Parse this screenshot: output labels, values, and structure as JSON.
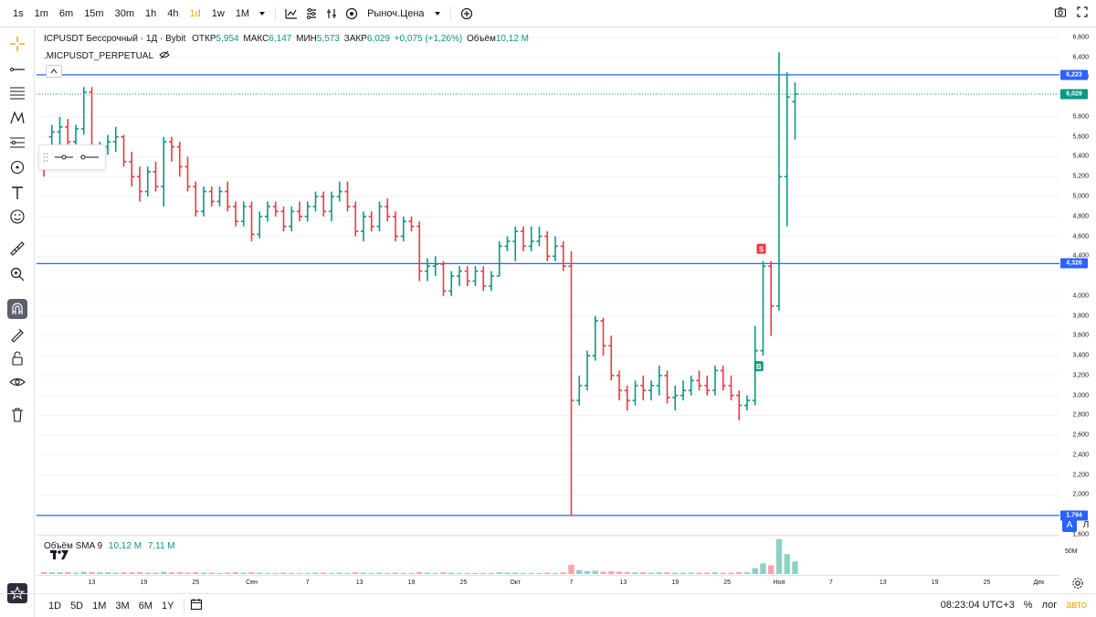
{
  "toolbar": {
    "timeframes": [
      "1s",
      "1m",
      "6m",
      "15m",
      "30m",
      "1h",
      "4h",
      "1d",
      "1w",
      "1M"
    ],
    "active_timeframe": "1d",
    "price_type": "Рыноч.Цена"
  },
  "legend": {
    "symbol": "ICPUSDT Бессрочный · 1Д · Bybit",
    "open_label": "ОТКР",
    "open": "5,954",
    "high_label": "МАКС",
    "high": "6,147",
    "low_label": "МИН",
    "low": "5,573",
    "close_label": "ЗАКР",
    "close": "6,029",
    "change": "+0,075 (+1,26%)",
    "volume_label": "Объём",
    "volume": "10,12 M",
    "subsymbol": ".MICPUSDT_PERPETUAL"
  },
  "volume_legend": {
    "label": "Объём SMA 9",
    "value1": "10,12 M",
    "value2": "7,11 M",
    "axis_label": "50M"
  },
  "price_axis": {
    "ticks": [
      "6,600",
      "6,400",
      "6,200",
      "5,800",
      "5,600",
      "5,400",
      "5,200",
      "5,000",
      "4,800",
      "4,600",
      "4,400",
      "4,000",
      "3,800",
      "3,600",
      "3,400",
      "3,200",
      "3,000",
      "2,800",
      "2,600",
      "2,400",
      "2,200",
      "2,000",
      "1,600"
    ],
    "badges": [
      {
        "text": "6,223",
        "color": "#2962ff"
      },
      {
        "text": "6,029",
        "color": "#089981"
      },
      {
        "text": "4,326",
        "color": "#2962ff"
      },
      {
        "text": "1,794",
        "color": "#2962ff"
      }
    ],
    "mode_auto": "A",
    "mode_log": "Л"
  },
  "time_axis": {
    "ticks": [
      "13",
      "19",
      "25",
      "Сен",
      "7",
      "13",
      "19",
      "25",
      "Окт",
      "7",
      "13",
      "19",
      "25",
      "Ноя",
      "7",
      "13",
      "19",
      "25",
      "Дек"
    ]
  },
  "bottombar": {
    "ranges": [
      "1D",
      "5D",
      "1M",
      "3M",
      "6M",
      "1Y"
    ],
    "clock": "08:23:04 UTC+3",
    "percent": "%",
    "log": "лог",
    "auto": "авто"
  },
  "markers": {
    "sell": "S",
    "buy": "B"
  },
  "chart_data": {
    "type": "ohlc",
    "title": "ICPUSDT Бессрочный · 1Д · Bybit",
    "xlabel": "",
    "ylabel": "",
    "ylim": [
      1600,
      6700
    ],
    "up_color": "#089981",
    "down_color": "#f23645",
    "horizontal_lines": [
      6223,
      4326,
      1794
    ],
    "bars": [
      [
        5.45,
        5.5,
        5.2,
        5.35
      ],
      [
        5.6,
        5.72,
        5.4,
        5.65
      ],
      [
        5.65,
        5.8,
        5.5,
        5.7
      ],
      [
        5.7,
        5.78,
        5.45,
        5.55
      ],
      [
        5.55,
        5.72,
        5.5,
        5.68
      ],
      [
        5.68,
        6.1,
        5.62,
        6.05
      ],
      [
        6.05,
        6.1,
        5.4,
        5.45
      ],
      [
        5.45,
        5.55,
        5.3,
        5.5
      ],
      [
        5.5,
        5.62,
        5.42,
        5.55
      ],
      [
        5.55,
        5.7,
        5.45,
        5.6
      ],
      [
        5.6,
        5.62,
        5.3,
        5.35
      ],
      [
        5.35,
        5.45,
        5.1,
        5.2
      ],
      [
        5.2,
        5.3,
        4.95,
        5.05
      ],
      [
        5.05,
        5.3,
        5.0,
        5.25
      ],
      [
        5.25,
        5.35,
        5.05,
        5.1
      ],
      [
        5.1,
        5.6,
        4.9,
        5.55
      ],
      [
        5.55,
        5.6,
        5.35,
        5.5
      ],
      [
        5.5,
        5.55,
        5.2,
        5.3
      ],
      [
        5.3,
        5.4,
        5.05,
        5.1
      ],
      [
        5.1,
        5.15,
        4.8,
        4.85
      ],
      [
        4.85,
        5.1,
        4.8,
        5.05
      ],
      [
        5.05,
        5.1,
        4.9,
        4.95
      ],
      [
        4.95,
        5.1,
        4.9,
        5.05
      ],
      [
        5.05,
        5.15,
        4.85,
        4.9
      ],
      [
        4.9,
        4.95,
        4.7,
        4.75
      ],
      [
        4.75,
        4.95,
        4.7,
        4.9
      ],
      [
        4.9,
        4.95,
        4.55,
        4.62
      ],
      [
        4.62,
        4.85,
        4.58,
        4.8
      ],
      [
        4.8,
        4.95,
        4.75,
        4.9
      ],
      [
        4.9,
        4.95,
        4.8,
        4.85
      ],
      [
        4.85,
        4.9,
        4.65,
        4.7
      ],
      [
        4.7,
        4.9,
        4.65,
        4.85
      ],
      [
        4.85,
        4.95,
        4.75,
        4.8
      ],
      [
        4.8,
        4.95,
        4.75,
        4.9
      ],
      [
        4.9,
        5.05,
        4.85,
        5.0
      ],
      [
        5.0,
        5.05,
        4.8,
        4.85
      ],
      [
        4.85,
        5.05,
        4.75,
        5.0
      ],
      [
        5.0,
        5.15,
        4.95,
        5.05
      ],
      [
        5.05,
        5.15,
        4.85,
        4.9
      ],
      [
        4.9,
        4.95,
        4.6,
        4.65
      ],
      [
        4.65,
        4.85,
        4.55,
        4.8
      ],
      [
        4.8,
        4.85,
        4.65,
        4.7
      ],
      [
        4.7,
        4.95,
        4.65,
        4.9
      ],
      [
        4.9,
        4.98,
        4.75,
        4.8
      ],
      [
        4.8,
        4.85,
        4.55,
        4.6
      ],
      [
        4.6,
        4.8,
        4.55,
        4.75
      ],
      [
        4.75,
        4.8,
        4.65,
        4.7
      ],
      [
        4.7,
        4.75,
        4.15,
        4.25
      ],
      [
        4.25,
        4.38,
        4.15,
        4.3
      ],
      [
        4.3,
        4.4,
        4.2,
        4.32
      ],
      [
        4.32,
        4.35,
        4.0,
        4.05
      ],
      [
        4.05,
        4.25,
        4.0,
        4.2
      ],
      [
        4.2,
        4.3,
        4.1,
        4.25
      ],
      [
        4.25,
        4.3,
        4.1,
        4.15
      ],
      [
        4.15,
        4.3,
        4.1,
        4.25
      ],
      [
        4.25,
        4.3,
        4.05,
        4.1
      ],
      [
        4.1,
        4.25,
        4.05,
        4.2
      ],
      [
        4.2,
        4.55,
        4.2,
        4.5
      ],
      [
        4.5,
        4.6,
        4.45,
        4.55
      ],
      [
        4.55,
        4.7,
        4.35,
        4.65
      ],
      [
        4.65,
        4.7,
        4.45,
        4.5
      ],
      [
        4.5,
        4.7,
        4.45,
        4.55
      ],
      [
        4.55,
        4.7,
        4.5,
        4.6
      ],
      [
        4.6,
        4.65,
        4.35,
        4.4
      ],
      [
        4.4,
        4.6,
        4.35,
        4.5
      ],
      [
        4.5,
        4.55,
        4.25,
        4.3
      ],
      [
        4.3,
        4.45,
        1.794,
        2.95
      ],
      [
        2.95,
        3.2,
        2.9,
        3.1
      ],
      [
        3.1,
        3.45,
        3.05,
        3.4
      ],
      [
        3.4,
        3.8,
        3.35,
        3.75
      ],
      [
        3.75,
        3.78,
        3.4,
        3.5
      ],
      [
        3.5,
        3.6,
        3.15,
        3.2
      ],
      [
        3.2,
        3.25,
        2.95,
        3.05
      ],
      [
        3.05,
        3.1,
        2.85,
        2.95
      ],
      [
        2.95,
        3.15,
        2.9,
        3.1
      ],
      [
        3.1,
        3.2,
        2.95,
        3.05
      ],
      [
        3.05,
        3.15,
        2.95,
        3.1
      ],
      [
        3.1,
        3.3,
        3.0,
        3.2
      ],
      [
        3.2,
        3.25,
        2.92,
        2.98
      ],
      [
        2.98,
        3.1,
        2.85,
        3.0
      ],
      [
        3.0,
        3.15,
        2.95,
        3.05
      ],
      [
        3.05,
        3.2,
        3.0,
        3.15
      ],
      [
        3.15,
        3.25,
        3.05,
        3.1
      ],
      [
        3.1,
        3.2,
        3.0,
        3.05
      ],
      [
        3.05,
        3.3,
        3.0,
        3.25
      ],
      [
        3.25,
        3.3,
        3.05,
        3.1
      ],
      [
        3.1,
        3.2,
        2.95,
        3.0
      ],
      [
        3.0,
        3.05,
        2.75,
        2.9
      ],
      [
        2.9,
        3.0,
        2.85,
        2.95
      ],
      [
        2.95,
        3.7,
        2.9,
        3.45
      ],
      [
        3.45,
        4.35,
        3.4,
        4.3
      ],
      [
        4.3,
        4.35,
        3.6,
        3.9
      ],
      [
        3.9,
        6.45,
        3.85,
        5.2
      ],
      [
        5.2,
        6.25,
        4.7,
        6.0
      ],
      [
        5.954,
        6.147,
        5.573,
        6.029
      ]
    ],
    "volume_series": {
      "name": "Объём SMA 9",
      "values": [
        0.6,
        0.5,
        0.5,
        0.6,
        0.4,
        0.7,
        0.6,
        0.5,
        0.5,
        0.4,
        0.5,
        0.5,
        0.6,
        0.4,
        0.4,
        0.7,
        0.5,
        0.5,
        0.4,
        0.5,
        0.4,
        0.4,
        0.3,
        0.4,
        0.5,
        0.4,
        0.5,
        0.4,
        0.3,
        0.3,
        0.4,
        0.3,
        0.3,
        0.3,
        0.4,
        0.4,
        0.3,
        0.4,
        0.3,
        0.5,
        0.4,
        0.3,
        0.4,
        0.3,
        0.4,
        0.3,
        0.3,
        0.6,
        0.4,
        0.3,
        0.5,
        0.4,
        0.3,
        0.3,
        0.3,
        0.3,
        0.3,
        0.5,
        0.4,
        0.4,
        0.3,
        0.3,
        0.3,
        0.4,
        0.3,
        0.5,
        2.8,
        1.2,
        0.9,
        1.0,
        0.7,
        0.8,
        0.7,
        0.6,
        0.5,
        0.5,
        0.4,
        0.5,
        0.5,
        0.4,
        0.4,
        0.4,
        0.4,
        0.4,
        0.5,
        0.4,
        0.4,
        0.6,
        0.5,
        1.8,
        3.2,
        2.6,
        10.5,
        6.0,
        3.8
      ]
    },
    "price_axis_ticks": [
      6600,
      6400,
      6200,
      5800,
      5600,
      5400,
      5200,
      5000,
      4800,
      4600,
      4400,
      4000,
      3800,
      3600,
      3400,
      3200,
      3000,
      2800,
      2600,
      2400,
      2200,
      2000,
      1600
    ],
    "time_axis_ticks": [
      "13",
      "19",
      "25",
      "Сен",
      "7",
      "13",
      "19",
      "25",
      "Окт",
      "7",
      "13",
      "19",
      "25",
      "Ноя",
      "7",
      "13",
      "19",
      "25",
      "Дек"
    ]
  }
}
